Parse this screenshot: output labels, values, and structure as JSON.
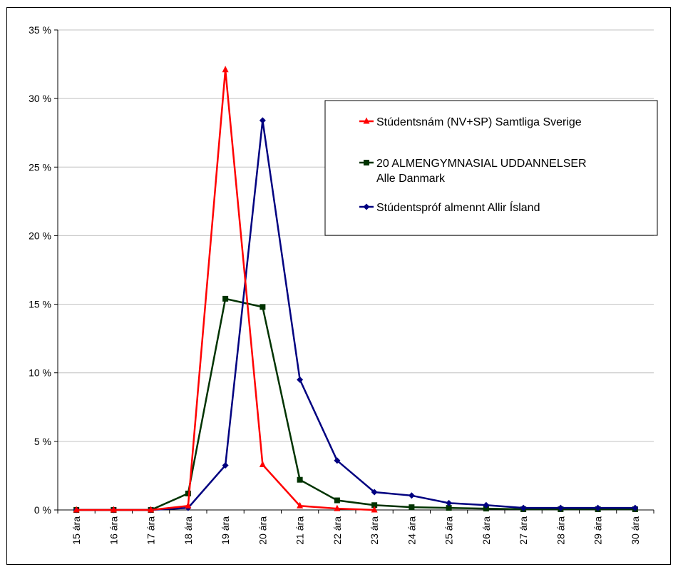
{
  "chart_data": {
    "type": "line",
    "categories": [
      "15 ára",
      "16 ára",
      "17 ára",
      "18 ára",
      "19 ára",
      "20 ára",
      "21 ára",
      "22 ára",
      "23 ára",
      "24 ára",
      "25 ára",
      "26 ára",
      "27 ára",
      "28 ára",
      "29 ára",
      "30 ára"
    ],
    "y_ticks": [
      "0 %",
      "5 %",
      "10 %",
      "15 %",
      "20 %",
      "25 %",
      "30 %",
      "35 %"
    ],
    "ylim": [
      0,
      35
    ],
    "grid": true,
    "legend_position": "top-right",
    "series": [
      {
        "name": "Stúdentsnám (NV+SP) Samtliga Sverige",
        "color": "#ff0000",
        "marker": "triangle",
        "values": [
          0,
          0,
          0,
          0.3,
          32.1,
          3.3,
          0.3,
          0.1,
          0.0,
          null,
          null,
          null,
          null,
          null,
          null,
          null
        ]
      },
      {
        "name_lines": [
          "20 ALMENGYMNASIAL UDDANNELSER",
          "Alle Danmark"
        ],
        "color": "#003300",
        "marker": "square",
        "values": [
          0,
          0,
          0,
          1.2,
          15.4,
          14.8,
          2.2,
          0.7,
          0.35,
          0.2,
          0.15,
          0.1,
          0.05,
          0.05,
          0.05,
          0.05
        ]
      },
      {
        "name": "Stúdentspróf almennt Allir Ísland",
        "color": "#000080",
        "marker": "diamond",
        "values": [
          0,
          0,
          0,
          0.15,
          3.25,
          28.4,
          9.5,
          3.6,
          1.3,
          1.05,
          0.5,
          0.35,
          0.15,
          0.15,
          0.15,
          0.15
        ]
      }
    ]
  }
}
